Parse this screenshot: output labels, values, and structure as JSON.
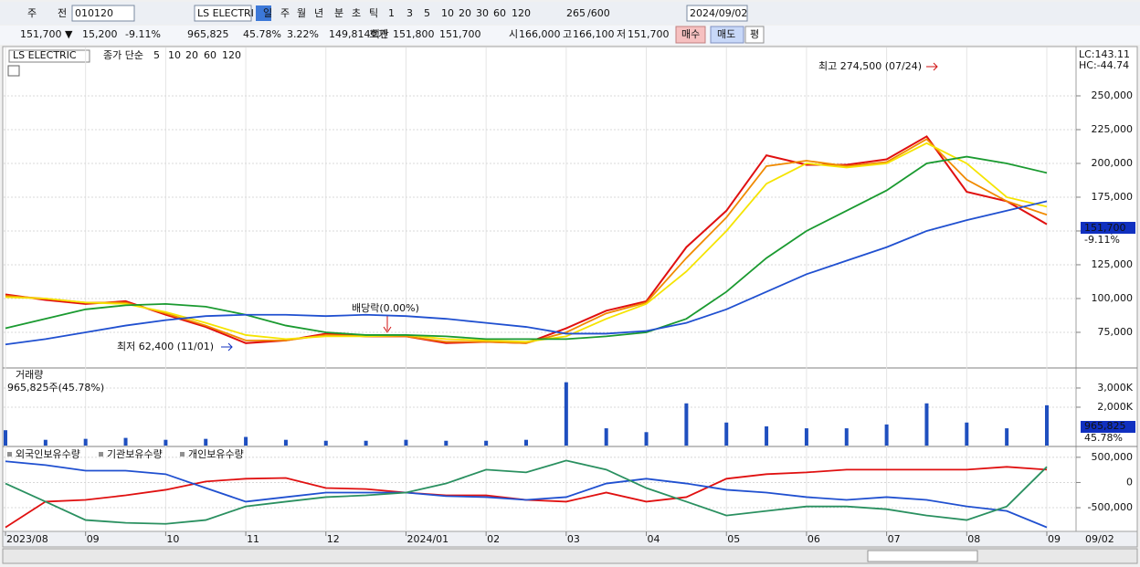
{
  "toolbar": {
    "row1": [
      "주",
      "전",
      "010120",
      "LS ELECTRI",
      "일",
      "주",
      "월",
      "년",
      "분",
      "초",
      "틱",
      "1",
      "3",
      "5",
      "10",
      "20",
      "30",
      "60",
      "120",
      "265",
      "/600",
      "2024/09/02"
    ],
    "row2": [
      "151,700 ▼",
      "15,200",
      "-9.11%",
      "965,825",
      "45.78%",
      "3.22%",
      "149,814백만",
      "호가",
      "151,800",
      "151,700",
      "시",
      "166,000",
      "고",
      "166,100",
      "저",
      "151,700",
      "매수",
      "매도",
      "평"
    ]
  },
  "x_axis": {
    "categories": [
      "2023/08",
      null,
      "09",
      null,
      "10",
      null,
      "11",
      null,
      "12",
      null,
      "2024/01",
      null,
      "02",
      null,
      "03",
      null,
      "04",
      null,
      "05",
      null,
      "06",
      null,
      "07",
      null,
      "08",
      null,
      "09"
    ],
    "end_label": "09/02"
  },
  "chart_data": [
    {
      "type": "line",
      "name": "LS ELECTRIC",
      "legend_title": "종가 단순",
      "ylim": [
        49300,
        285800
      ],
      "yticks": [
        {
          "value": 75000,
          "label": "75,000"
        },
        {
          "value": 100000,
          "label": "100,000"
        },
        {
          "value": 125000,
          "label": "125,000"
        },
        {
          "value": 150000,
          "label": "150,000"
        },
        {
          "value": 175000,
          "label": "175,000"
        },
        {
          "value": 200000,
          "label": "200,000"
        },
        {
          "value": 225000,
          "label": "225,000"
        },
        {
          "value": 250000,
          "label": "250,000"
        }
      ],
      "grid": true,
      "series": [
        {
          "name": "5",
          "color": "#e01010",
          "values": [
            103000,
            99000,
            96000,
            98000,
            88000,
            79000,
            67000,
            69000,
            74000,
            72000,
            72000,
            67000,
            68000,
            67000,
            78000,
            91000,
            98000,
            138000,
            165000,
            206000,
            199000,
            199000,
            203000,
            220000,
            179000,
            172000,
            155000
          ]
        },
        {
          "name": "10",
          "color": "#f08a00",
          "values": [
            102000,
            100000,
            97000,
            97000,
            89000,
            80000,
            69000,
            69000,
            73000,
            72000,
            72000,
            68000,
            68000,
            67000,
            75000,
            89000,
            97000,
            130000,
            160000,
            198000,
            202000,
            198000,
            201000,
            218000,
            188000,
            172000,
            162000
          ]
        },
        {
          "name": "20",
          "color": "#f5e400",
          "values": [
            101000,
            100000,
            97000,
            96000,
            90000,
            82000,
            73000,
            70000,
            72000,
            72000,
            73000,
            70000,
            69000,
            68000,
            72000,
            85000,
            96000,
            120000,
            150000,
            185000,
            200000,
            197000,
            200000,
            215000,
            200000,
            175000,
            168000
          ]
        },
        {
          "name": "60",
          "color": "#1a9a30",
          "values": [
            78000,
            85000,
            92000,
            95000,
            96000,
            94000,
            88000,
            80000,
            75000,
            73000,
            73000,
            72000,
            70000,
            70000,
            70000,
            72000,
            75000,
            85000,
            105000,
            130000,
            150000,
            165000,
            180000,
            200000,
            205000,
            200000,
            193000
          ]
        },
        {
          "name": "120",
          "color": "#2050d0",
          "values": [
            66000,
            70000,
            75000,
            80000,
            84000,
            87000,
            88000,
            88000,
            87000,
            88000,
            87000,
            85000,
            82000,
            79000,
            74000,
            74000,
            76000,
            82000,
            92000,
            105000,
            118000,
            128000,
            138000,
            150000,
            158000,
            165000,
            172000
          ]
        }
      ],
      "annotations": {
        "high": "최고 274,500 (07/24)",
        "low": "최저 62,400 (11/01)",
        "dividend": "배당락(0.00%)"
      },
      "lc": "LC:143.11",
      "hc": "HC:-44.74",
      "last_price_label": "151,700",
      "last_change": "-9.11%"
    },
    {
      "type": "bar",
      "title": "거래량",
      "subtitle": "965,825주(45.78%)",
      "ylim": [
        0,
        3950
      ],
      "yticks": [
        {
          "value": 2000,
          "label": "2,000K"
        },
        {
          "value": 3000,
          "label": "3,000K"
        }
      ],
      "series": [
        {
          "name": "거래량",
          "color": "#1f4fbf",
          "values": [
            800,
            300,
            350,
            400,
            300,
            350,
            450,
            300,
            250,
            250,
            300,
            250,
            250,
            300,
            3300,
            900,
            700,
            2200,
            1200,
            1000,
            900,
            900,
            1100,
            2200,
            1200,
            900,
            2100
          ]
        }
      ],
      "last_label": "965,825",
      "last_pct": "45.78%"
    },
    {
      "type": "line",
      "ylim": [
        -970000,
        660000
      ],
      "yticks": [
        {
          "value": 500000,
          "label": "500,000"
        },
        0,
        {
          "value": -500000,
          "label": "-500,000"
        }
      ],
      "series": [
        {
          "name": "외국인보유수량",
          "color": "#e01010",
          "values": [
            -890000,
            -380000,
            -345000,
            -255000,
            -145000,
            20000,
            75000,
            90000,
            -110000,
            -130000,
            -200000,
            -255000,
            -255000,
            -345000,
            -380000,
            -200000,
            -380000,
            -290000,
            75000,
            165000,
            200000,
            255000,
            255000,
            255000,
            255000,
            310000,
            255000
          ]
        },
        {
          "name": "기관보유수량",
          "color": "#2050d0",
          "values": [
            420000,
            345000,
            235000,
            235000,
            165000,
            -110000,
            -380000,
            -290000,
            -200000,
            -200000,
            -200000,
            -270000,
            -290000,
            -345000,
            -290000,
            -20000,
            75000,
            -20000,
            -145000,
            -200000,
            -290000,
            -345000,
            -290000,
            -345000,
            -475000,
            -565000,
            -890000
          ]
        },
        {
          "name": "개인보유수량",
          "color": "#2a9060",
          "values": [
            -20000,
            -380000,
            -745000,
            -800000,
            -820000,
            -745000,
            -475000,
            -380000,
            -290000,
            -255000,
            -200000,
            -20000,
            255000,
            200000,
            435000,
            255000,
            -110000,
            -380000,
            -655000,
            -565000,
            -475000,
            -475000,
            -530000,
            -655000,
            -745000,
            -475000,
            310000
          ]
        }
      ]
    }
  ]
}
